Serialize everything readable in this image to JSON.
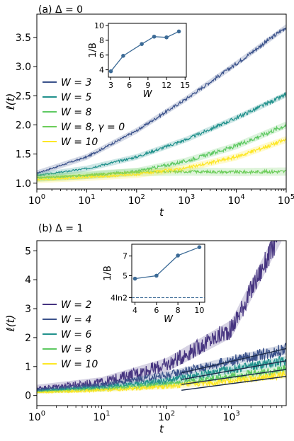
{
  "chart_data": [
    {
      "type": "line",
      "panel": "a",
      "title": "(a) Δ = 0",
      "xlabel": "t",
      "ylabel": "ℓ(t)",
      "xscale": "log",
      "xlim": [
        1,
        100000
      ],
      "ylim": [
        0.9,
        3.9
      ],
      "xticks": [
        {
          "v": 1,
          "b": "10",
          "e": "0"
        },
        {
          "v": 10,
          "b": "10",
          "e": "1"
        },
        {
          "v": 100,
          "b": "10",
          "e": "2"
        },
        {
          "v": 1000,
          "b": "10",
          "e": "3"
        },
        {
          "v": 10000,
          "b": "10",
          "e": "4"
        },
        {
          "v": 100000,
          "b": "10",
          "e": "5"
        }
      ],
      "yticks": [
        {
          "v": 1.0,
          "label": "1.0"
        },
        {
          "v": 1.5,
          "label": "1.5"
        },
        {
          "v": 2.0,
          "label": "2.0"
        },
        {
          "v": 2.5,
          "label": "2.5"
        },
        {
          "v": 3.0,
          "label": "3.0"
        },
        {
          "v": 3.5,
          "label": "3.5"
        }
      ],
      "legend_position": "middle-left",
      "series": [
        {
          "name": "W = 3",
          "color": "#3b528b",
          "x": [
            1,
            10,
            100,
            1000,
            10000,
            100000
          ],
          "y": [
            1.17,
            1.45,
            1.9,
            2.45,
            3.05,
            3.68
          ]
        },
        {
          "name": "W = 5",
          "color": "#21918c",
          "x": [
            1,
            10,
            100,
            1000,
            10000,
            100000
          ],
          "y": [
            1.13,
            1.25,
            1.45,
            1.75,
            2.12,
            2.52
          ]
        },
        {
          "name": "W = 8",
          "color": "#5ec962",
          "x": [
            1,
            10,
            100,
            1000,
            10000,
            100000
          ],
          "y": [
            1.09,
            1.13,
            1.2,
            1.38,
            1.64,
            2.0
          ]
        },
        {
          "name": "W = 8, γ = 0",
          "color": "#6ccd5a",
          "x": [
            1,
            10,
            100,
            1000,
            10000,
            100000
          ],
          "y": [
            1.09,
            1.14,
            1.19,
            1.2,
            1.19,
            1.2
          ]
        },
        {
          "name": "W = 10",
          "color": "#fde725",
          "x": [
            1,
            10,
            100,
            1000,
            10000,
            100000
          ],
          "y": [
            1.06,
            1.1,
            1.15,
            1.26,
            1.45,
            1.75
          ]
        }
      ],
      "inset": {
        "ylabel": "1/B",
        "xlabel": "W",
        "xlim": [
          2.6,
          15.2
        ],
        "ylim": [
          3,
          10.3
        ],
        "xticks": [
          3,
          6,
          9,
          12,
          15
        ],
        "yticks": [
          4,
          6,
          8,
          10
        ],
        "color": "#3b6a96",
        "x": [
          3,
          5,
          8,
          10,
          12,
          14
        ],
        "y": [
          3.8,
          5.9,
          7.5,
          8.5,
          8.4,
          9.2
        ]
      }
    },
    {
      "type": "line",
      "panel": "b",
      "title": "(b) Δ = 1",
      "xlabel": "t",
      "ylabel": "ℓ(t)",
      "xscale": "log",
      "xlim": [
        1,
        7000
      ],
      "ylim": [
        -0.35,
        5.35
      ],
      "xticks": [
        {
          "v": 1,
          "b": "10",
          "e": "0"
        },
        {
          "v": 10,
          "b": "10",
          "e": "1"
        },
        {
          "v": 100,
          "b": "10",
          "e": "2"
        },
        {
          "v": 1000,
          "b": "10",
          "e": "3"
        }
      ],
      "yticks": [
        {
          "v": 0,
          "label": "0"
        },
        {
          "v": 1,
          "label": "1"
        },
        {
          "v": 2,
          "label": "2"
        },
        {
          "v": 3,
          "label": "3"
        },
        {
          "v": 4,
          "label": "4"
        },
        {
          "v": 5,
          "label": "5"
        }
      ],
      "legend_position": "middle-left",
      "series": [
        {
          "name": "W = 2",
          "color": "#463480",
          "x": [
            1,
            10,
            100,
            1000,
            7000
          ],
          "y": [
            0.25,
            0.45,
            1.05,
            2.3,
            6.0
          ]
        },
        {
          "name": "W = 4",
          "color": "#3b528b",
          "x": [
            1,
            10,
            100,
            1000,
            7000
          ],
          "y": [
            0.2,
            0.35,
            0.7,
            1.2,
            1.6
          ]
        },
        {
          "name": "W = 6",
          "color": "#21918c",
          "x": [
            1,
            10,
            100,
            1000,
            7000
          ],
          "y": [
            0.15,
            0.27,
            0.5,
            0.9,
            1.2
          ]
        },
        {
          "name": "W = 8",
          "color": "#5ec962",
          "x": [
            1,
            10,
            100,
            1000,
            7000
          ],
          "y": [
            0.12,
            0.22,
            0.38,
            0.66,
            0.9
          ]
        },
        {
          "name": "W = 10",
          "color": "#fde725",
          "x": [
            1,
            10,
            100,
            1000,
            7000
          ],
          "y": [
            0.1,
            0.18,
            0.3,
            0.5,
            0.72
          ]
        }
      ],
      "fit_lines": [
        {
          "x": [
            170,
            7000
          ],
          "y": [
            0.78,
            1.62
          ]
        },
        {
          "x": [
            170,
            7000
          ],
          "y": [
            0.55,
            1.2
          ]
        },
        {
          "x": [
            170,
            7000
          ],
          "y": [
            0.38,
            0.9
          ]
        },
        {
          "x": [
            170,
            7000
          ],
          "y": [
            0.18,
            0.66
          ]
        }
      ],
      "inset": {
        "ylabel": "1/B",
        "xlabel": "W",
        "xlim": [
          3.7,
          10.5
        ],
        "ylim": [
          2.3,
          8.2
        ],
        "xticks": [
          4,
          6,
          8,
          10
        ],
        "yticks": [
          {
            "v": 2.77,
            "label": "4ln2"
          },
          {
            "v": 5,
            "label": "5"
          },
          {
            "v": 7,
            "label": "7"
          }
        ],
        "hline": 2.77,
        "color": "#3b6a96",
        "x": [
          4,
          6,
          8,
          10
        ],
        "y": [
          4.7,
          5.0,
          7.05,
          7.9
        ]
      }
    }
  ]
}
